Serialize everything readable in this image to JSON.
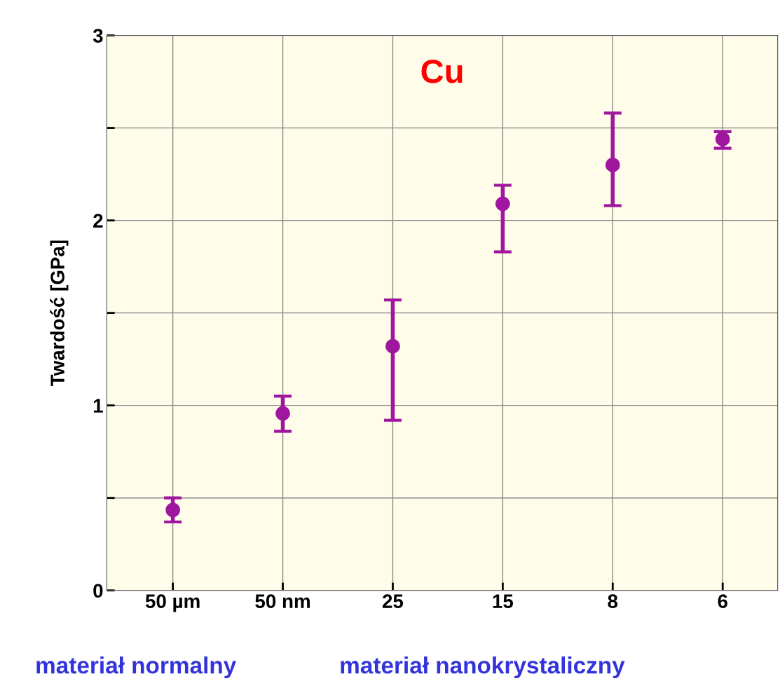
{
  "chart_data": {
    "type": "scatter",
    "ylabel": "Twardość [GPa]",
    "categories": [
      "50 µm",
      "50 nm",
      "25",
      "15",
      "8",
      "6"
    ],
    "series": [
      {
        "color": "#a0179f",
        "values": [
          0.435,
          0.957,
          1.32,
          2.09,
          2.3,
          2.44
        ],
        "errors": [
          [
            0.37,
            0.5
          ],
          [
            0.86,
            1.05
          ],
          [
            0.92,
            1.57
          ],
          [
            1.83,
            2.19
          ],
          [
            2.08,
            2.58
          ],
          [
            2.39,
            2.48
          ]
        ]
      }
    ],
    "ylim": [
      0,
      3
    ],
    "yticks": [
      0,
      {
        "value": 0.5,
        "label": null
      },
      1,
      {
        "value": 1.5,
        "label": null
      },
      2,
      {
        "value": 2.5,
        "label": null
      },
      3
    ],
    "grid": true,
    "marker": "circle",
    "annotations": [
      "Cu",
      "materiał normalny",
      "materiał nanokrystaliczny"
    ]
  }
}
